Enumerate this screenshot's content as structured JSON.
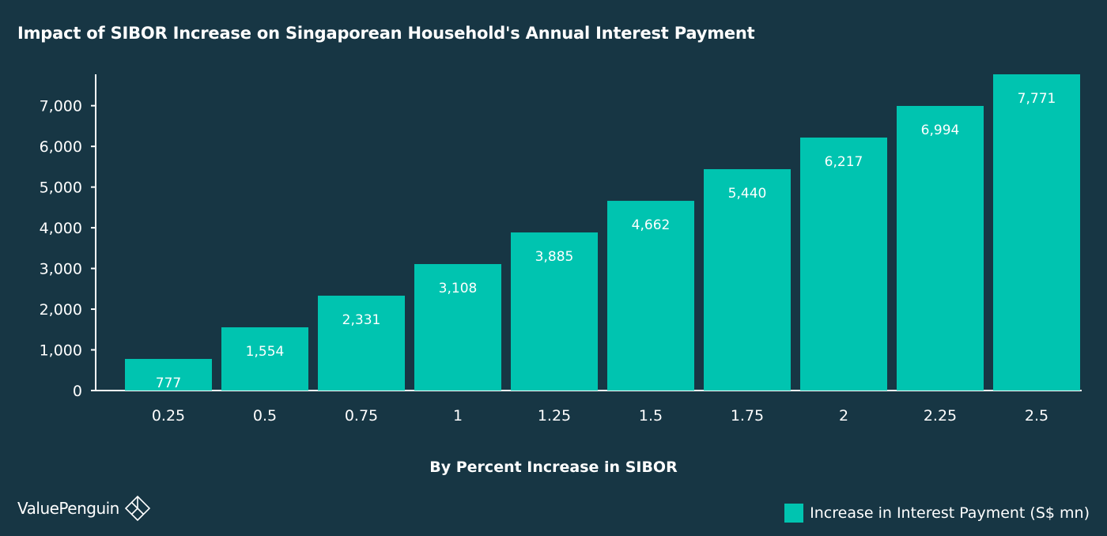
{
  "colors": {
    "background": "#173644",
    "bar": "#00c4b0",
    "axis": "#ffffff",
    "text": "#ffffff"
  },
  "logo": {
    "text": "ValuePenguin",
    "icon": "valuepenguin-logo-icon"
  },
  "chart_data": {
    "type": "bar",
    "title": "Impact of SIBOR Increase on Singaporean Household's Annual Interest Payment",
    "xlabel": "By Percent Increase in SIBOR",
    "ylabel": "",
    "categories": [
      "0.25",
      "0.5",
      "0.75",
      "1",
      "1.25",
      "1.5",
      "1.75",
      "2",
      "2.25",
      "2.5"
    ],
    "series": [
      {
        "name": "Increase in Interest Payment (S$ mn)",
        "values": [
          777,
          1554,
          2331,
          3108,
          3885,
          4662,
          5440,
          6217,
          6994,
          7771
        ],
        "labels": [
          "777",
          "1,554",
          "2,331",
          "3,108",
          "3,885",
          "4,662",
          "5,440",
          "6,217",
          "6,994",
          "7,771"
        ]
      }
    ],
    "ylim": [
      0,
      7771
    ],
    "yticks": [
      0,
      1000,
      2000,
      3000,
      4000,
      5000,
      6000,
      7000
    ],
    "ytick_labels": [
      "0",
      "1,000",
      "2,000",
      "3,000",
      "4,000",
      "5,000",
      "6,000",
      "7,000"
    ],
    "grid": false,
    "legend": "bottom-right"
  }
}
